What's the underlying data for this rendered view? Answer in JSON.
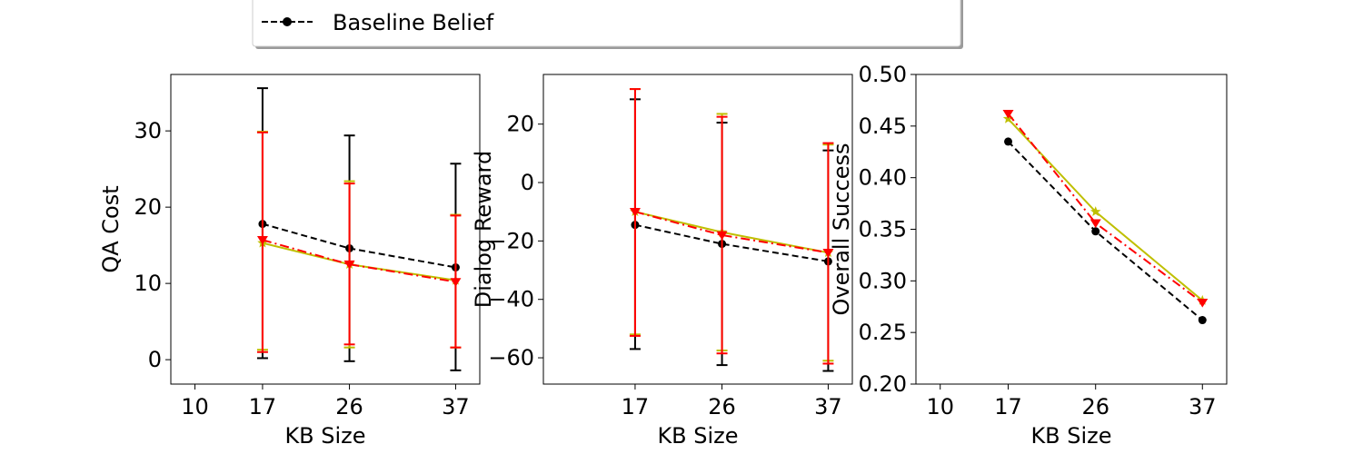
{
  "legend": {
    "entries": [
      {
        "label": "Baseline Belief",
        "color": "#000000",
        "style": "dashed",
        "marker": "circle"
      }
    ]
  },
  "chart_data": [
    {
      "type": "line",
      "xlabel": "KB Size",
      "ylabel": "QA Cost",
      "xlim": [
        7.5,
        39.5
      ],
      "ylim": [
        -3.2,
        37.4
      ],
      "xticks": [
        10,
        17,
        26,
        37
      ],
      "yticks": [
        0,
        10,
        20,
        30
      ],
      "x": [
        17,
        26,
        37
      ],
      "series": [
        {
          "color": "#000000",
          "style": "dashed",
          "marker": "circle",
          "values": [
            17.8,
            14.6,
            12.1
          ],
          "err_low": [
            0.2,
            -0.2,
            -1.4
          ],
          "err_high": [
            35.6,
            29.4,
            25.7
          ]
        },
        {
          "color": "#bfbf00",
          "style": "solid",
          "marker": "star",
          "values": [
            15.3,
            12.5,
            10.4
          ],
          "err_low": [
            1.3,
            1.6,
            1.6
          ],
          "err_high": [
            29.9,
            23.4,
            19.0
          ]
        },
        {
          "color": "#ff0000",
          "style": "dashdot",
          "marker": "triangle-down",
          "values": [
            15.7,
            12.5,
            10.2
          ],
          "err_low": [
            1.0,
            2.0,
            1.6
          ],
          "err_high": [
            29.8,
            23.1,
            18.9
          ]
        }
      ]
    },
    {
      "type": "line",
      "xlabel": "KB Size",
      "ylabel": "Dialog Reward",
      "xlim": [
        7.5,
        39.5
      ],
      "ylim": [
        -69.0,
        37.0
      ],
      "xticks": [
        17,
        26,
        37
      ],
      "yticks": [
        -60,
        -40,
        -20,
        0,
        20
      ],
      "x": [
        17,
        26,
        37
      ],
      "series": [
        {
          "color": "#000000",
          "style": "dashed",
          "marker": "circle",
          "values": [
            -14.5,
            -21.0,
            -27.0
          ],
          "err_low": [
            -57.0,
            -62.5,
            -64.5
          ],
          "err_high": [
            28.5,
            20.5,
            11.0
          ]
        },
        {
          "color": "#bfbf00",
          "style": "solid",
          "marker": "star",
          "values": [
            -10.0,
            -17.0,
            -24.0
          ],
          "err_low": [
            -52.0,
            -57.5,
            -61.0
          ],
          "err_high": [
            32.0,
            23.5,
            13.0
          ]
        },
        {
          "color": "#ff0000",
          "style": "dashdot",
          "marker": "triangle-down",
          "values": [
            -10.0,
            -18.0,
            -24.0
          ],
          "err_low": [
            -52.5,
            -58.5,
            -62.0
          ],
          "err_high": [
            32.0,
            22.5,
            13.5
          ]
        }
      ]
    },
    {
      "type": "line",
      "xlabel": "KB Size",
      "ylabel": "Overall Success",
      "xlim": [
        7.5,
        39.5
      ],
      "ylim": [
        0.2,
        0.5
      ],
      "xticks": [
        10,
        17,
        26,
        37
      ],
      "yticks": [
        0.2,
        0.25,
        0.3,
        0.35,
        0.4,
        0.45,
        0.5
      ],
      "ytick_labels": [
        "0.20",
        "0.25",
        "0.30",
        "0.35",
        "0.40",
        "0.45",
        "0.50"
      ],
      "x": [
        17,
        26,
        37
      ],
      "series": [
        {
          "color": "#000000",
          "style": "dashed",
          "marker": "circle",
          "values": [
            0.435,
            0.348,
            0.262
          ]
        },
        {
          "color": "#bfbf00",
          "style": "solid",
          "marker": "star",
          "values": [
            0.457,
            0.367,
            0.281
          ]
        },
        {
          "color": "#ff0000",
          "style": "dashdot",
          "marker": "triangle-down",
          "values": [
            0.462,
            0.356,
            0.279
          ]
        }
      ]
    }
  ]
}
